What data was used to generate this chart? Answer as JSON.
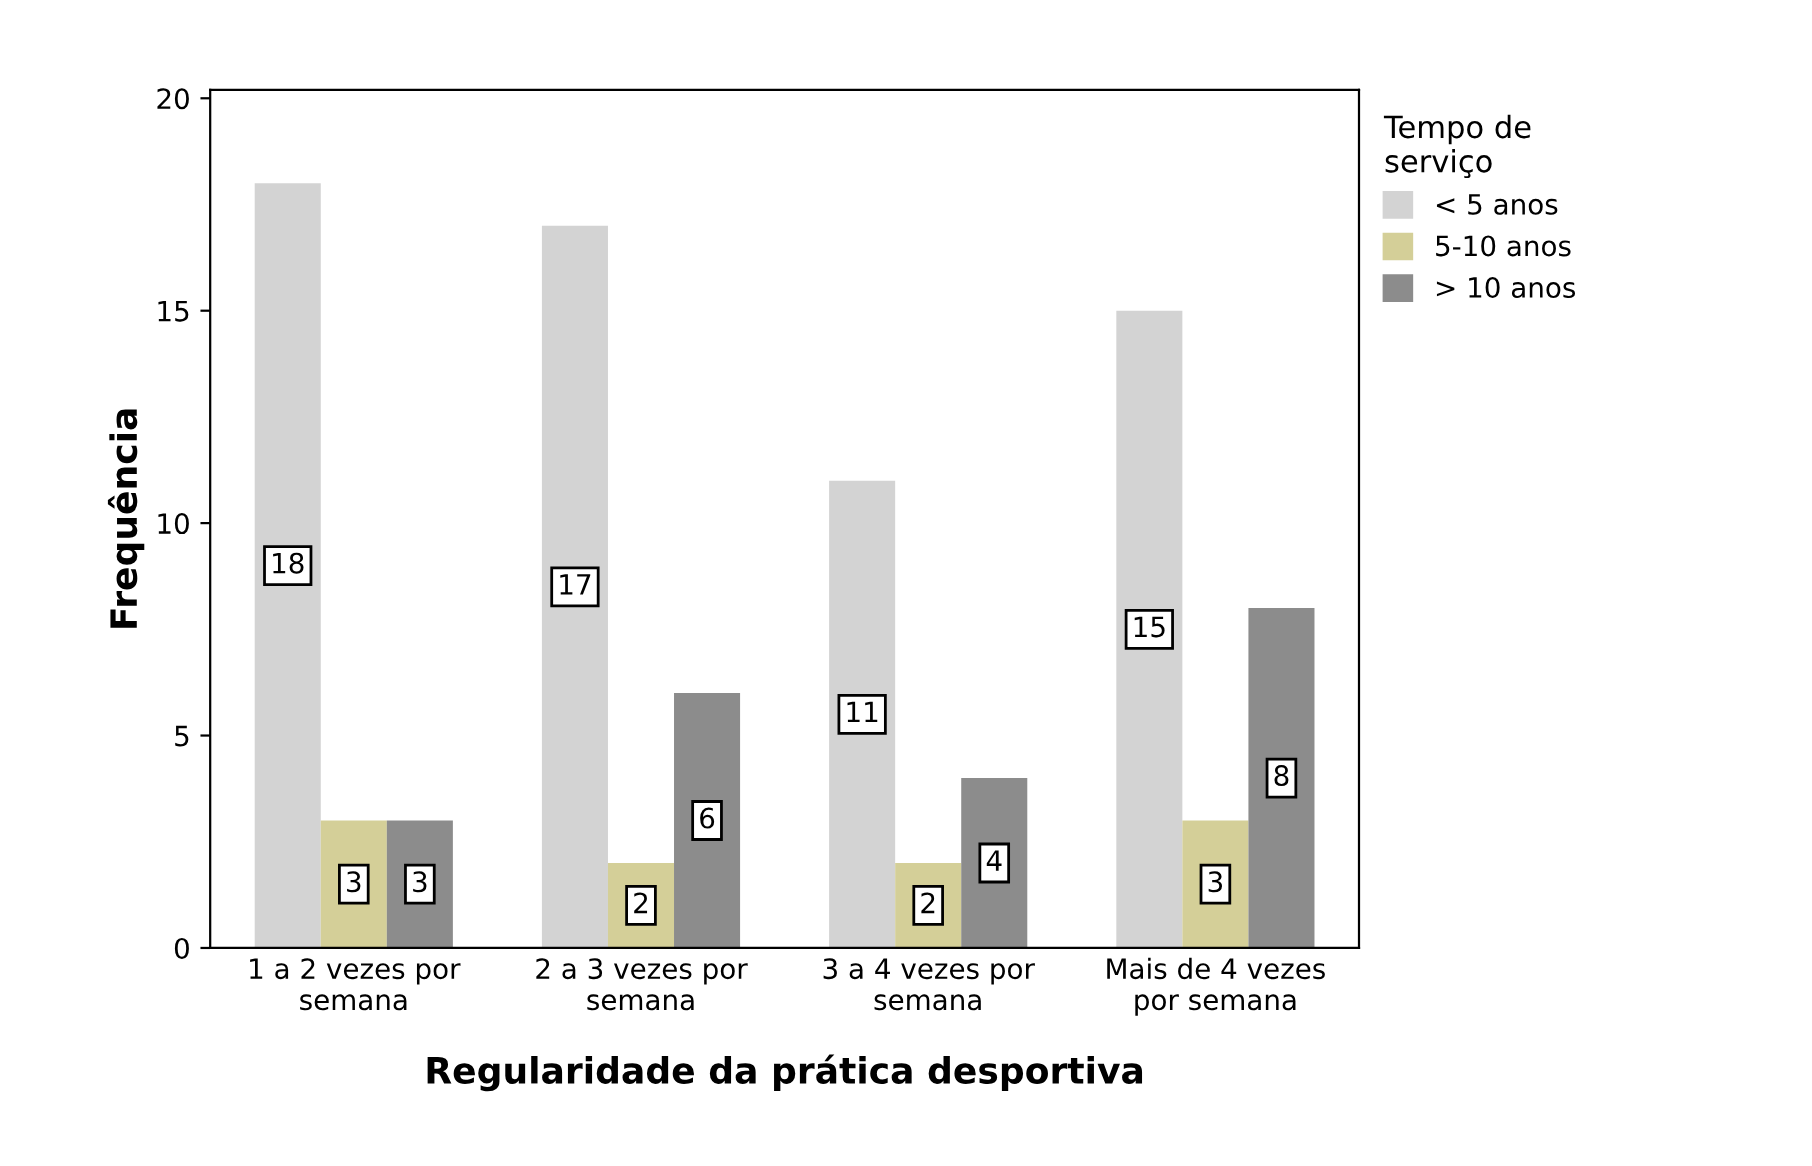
{
  "chart_data": {
    "type": "bar",
    "xlabel": "Regularidade da prática desportiva",
    "ylabel": "Frequência",
    "legend_title": "Tempo de\nserviço",
    "categories": [
      "1 a 2 vezes por\nsemana",
      "2 a 3 vezes por\nsemana",
      "3 a 4 vezes por\nsemana",
      "Mais de 4 vezes\npor semana"
    ],
    "series": [
      {
        "name": "< 5 anos",
        "color": "#d3d3d3",
        "values": [
          18,
          17,
          11,
          15
        ]
      },
      {
        "name": "5-10 anos",
        "color": "#d4cf98",
        "values": [
          3,
          2,
          2,
          3
        ]
      },
      {
        "name": "> 10 anos",
        "color": "#8c8c8c",
        "values": [
          3,
          6,
          4,
          8
        ]
      }
    ],
    "ylim": [
      0,
      20.2
    ],
    "yticks": [
      0,
      5,
      10,
      15,
      20
    ],
    "grid": false,
    "legend": "top right",
    "data_labels": true
  }
}
